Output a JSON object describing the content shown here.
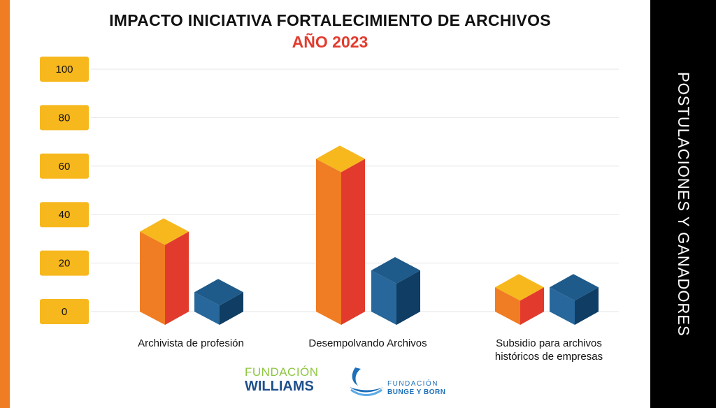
{
  "title": "IMPACTO INICIATIVA FORTALECIMIENTO DE ARCHIVOS",
  "subtitle": "AÑO 2023",
  "side_label": "POSTULACIONES Y GANADORES",
  "logos": {
    "williams_line1": "FUNDACIÓN",
    "williams_line2": "WILLIAMS",
    "bunge_line1": "FUNDACIÓN",
    "bunge_line2": "BUNGE Y BORN"
  },
  "colors": {
    "accent_orange": "#f07d23",
    "subtitle_red": "#e23b2d",
    "tick_badge_yellow": "#f7b81e",
    "series1_front": "#f07d23",
    "series1_side": "#e23b2d",
    "series1_top": "#f7b81e",
    "series2_front": "#27679b",
    "series2_side": "#0f3d63",
    "series2_top": "#1e5a8a"
  },
  "chart_data": {
    "type": "bar",
    "style": "3d-columns",
    "categories": [
      [
        "Archivista de profesión"
      ],
      [
        "Desempolvando Archivos"
      ],
      [
        "Subsidio para archivos",
        "históricos de empresas"
      ]
    ],
    "series": [
      {
        "values": [
          33,
          63,
          10
        ]
      },
      {
        "values": [
          8,
          17,
          10
        ]
      }
    ],
    "yticks": [
      "0",
      "20",
      "40",
      "60",
      "80",
      "100"
    ],
    "ylim": [
      0,
      100
    ],
    "grid": true
  }
}
